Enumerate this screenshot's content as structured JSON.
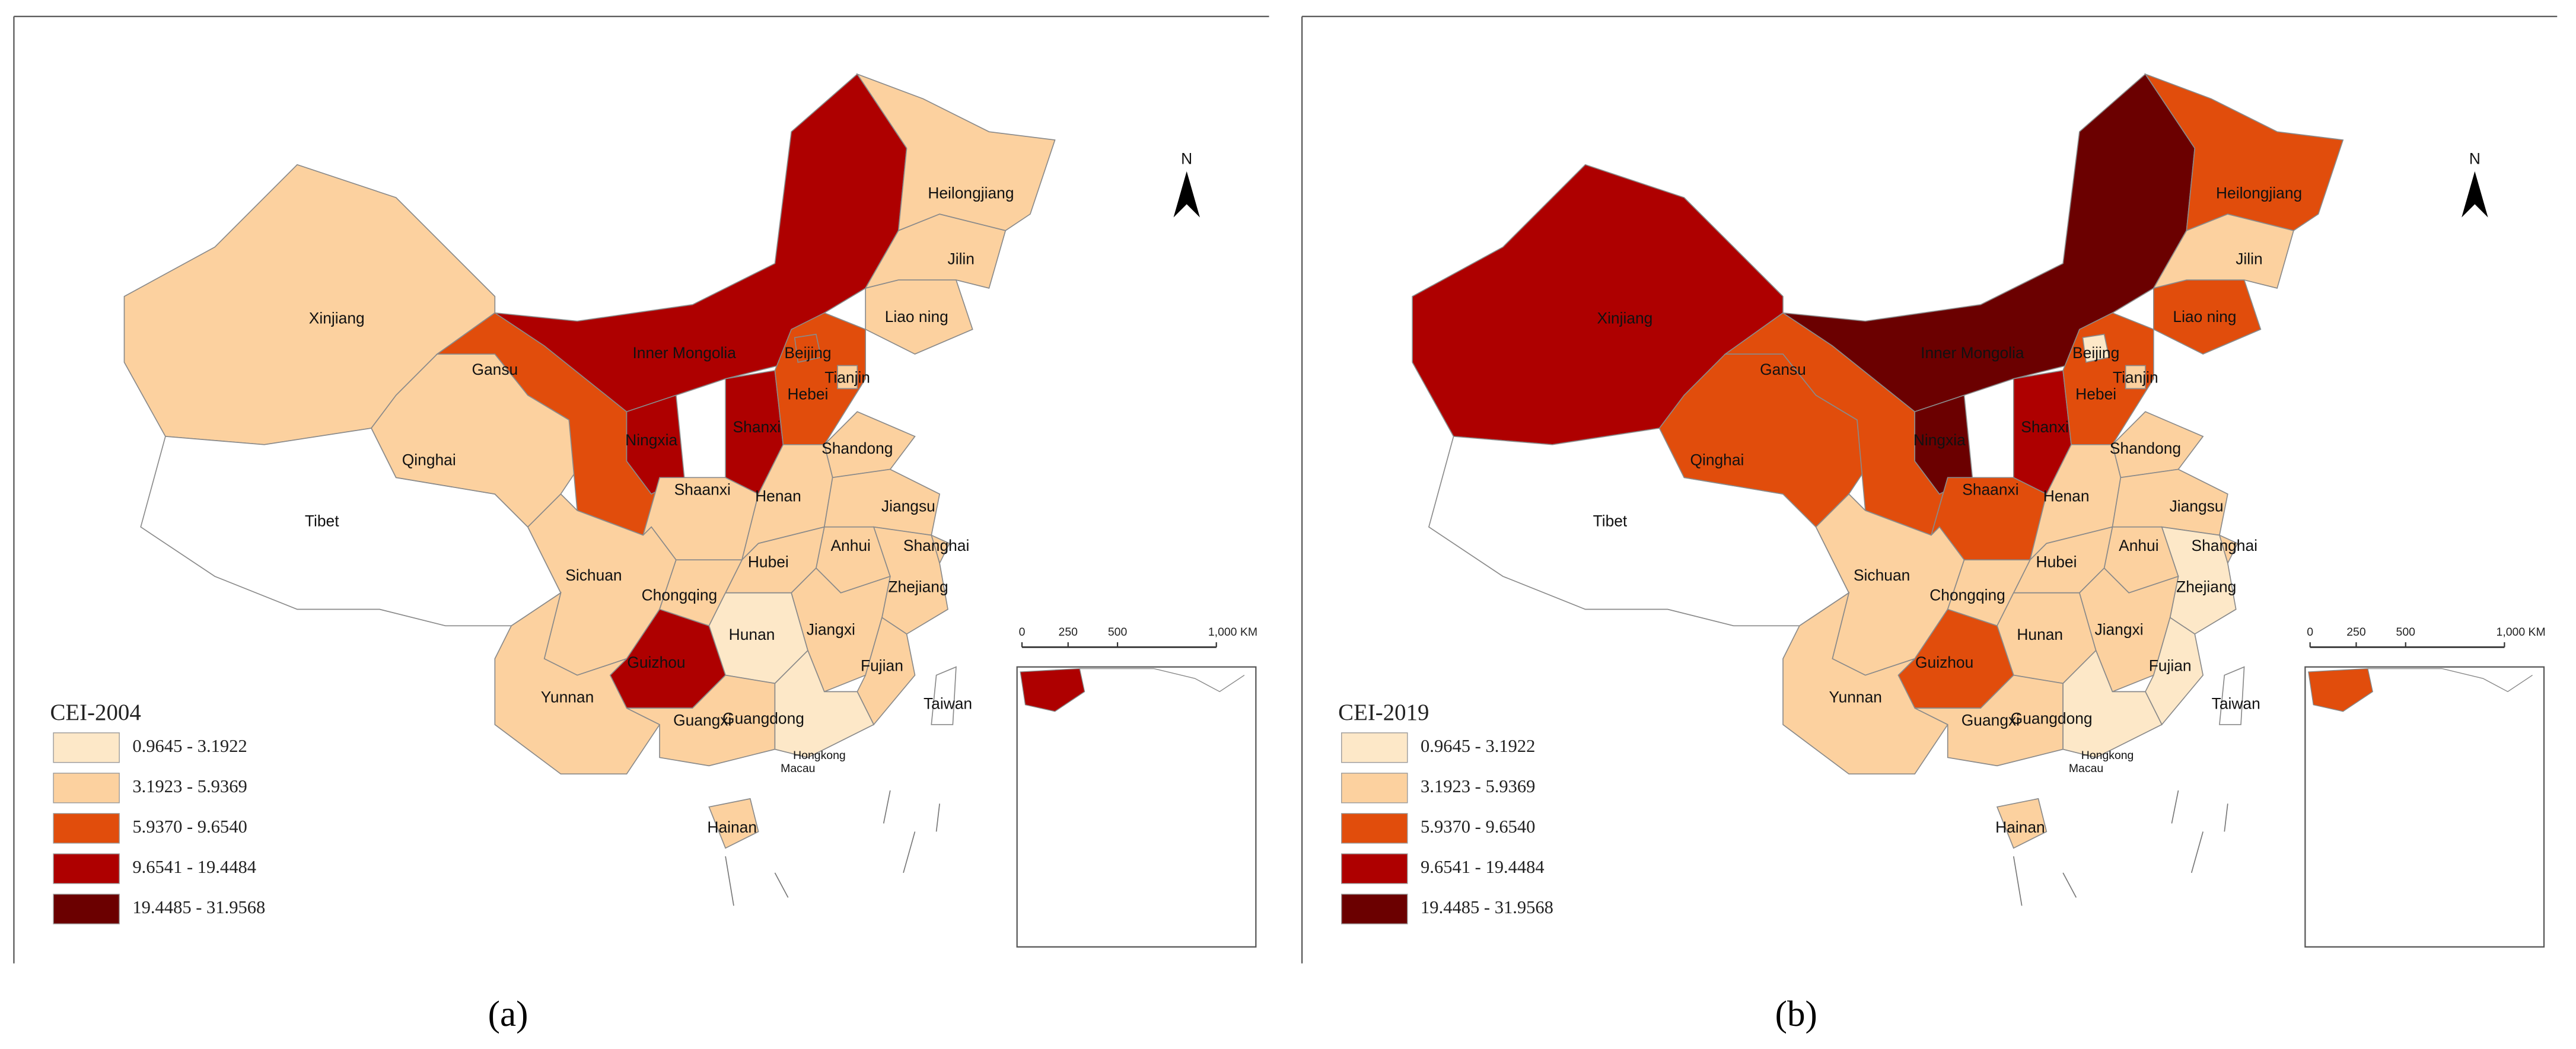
{
  "legend_classes": [
    {
      "label": "0.9645 - 3.1922",
      "color": "#fde8c8"
    },
    {
      "label": "3.1923 - 5.9369",
      "color": "#fcd19f"
    },
    {
      "label": "5.9370 - 9.6540",
      "color": "#e14d0c"
    },
    {
      "label": "9.6541 - 19.4484",
      "color": "#ae0000"
    },
    {
      "label": "19.4485 - 31.9568",
      "color": "#6b0000"
    }
  ],
  "north": "N",
  "scale_labels": [
    "0",
    "250",
    "500",
    "1,000 KM"
  ],
  "extra_labels": [
    "Hongkong",
    "Macau"
  ],
  "panels": [
    {
      "caption": "(a)",
      "legend_title": "CEI-2004",
      "provinces": [
        {
          "name": "Xinjiang",
          "color": "#fcd19f"
        },
        {
          "name": "Tibet",
          "color": "#ffffff"
        },
        {
          "name": "Qinghai",
          "color": "#fcd19f"
        },
        {
          "name": "Gansu",
          "color": "#e14d0c"
        },
        {
          "name": "Inner Mongolia",
          "color": "#ae0000"
        },
        {
          "name": "Ningxia",
          "color": "#ae0000"
        },
        {
          "name": "Shanxi",
          "color": "#ae0000"
        },
        {
          "name": "Shaanxi",
          "color": "#fcd19f"
        },
        {
          "name": "Hebei",
          "color": "#e14d0c"
        },
        {
          "name": "Beijing",
          "color": "#e14d0c"
        },
        {
          "name": "Tianjin",
          "color": "#fcd19f"
        },
        {
          "name": "Liao ning",
          "color": "#fcd19f"
        },
        {
          "name": "Jilin",
          "color": "#fcd19f"
        },
        {
          "name": "Heilongjiang",
          "color": "#fcd19f"
        },
        {
          "name": "Shandong",
          "color": "#fcd19f"
        },
        {
          "name": "Henan",
          "color": "#fcd19f"
        },
        {
          "name": "Jiangsu",
          "color": "#fcd19f"
        },
        {
          "name": "Anhui",
          "color": "#fcd19f"
        },
        {
          "name": "Shanghai",
          "color": "#fcd19f"
        },
        {
          "name": "Hubei",
          "color": "#fcd19f"
        },
        {
          "name": "Zhejiang",
          "color": "#fcd19f"
        },
        {
          "name": "Sichuan",
          "color": "#fcd19f"
        },
        {
          "name": "Chongqing",
          "color": "#fcd19f"
        },
        {
          "name": "Hunan",
          "color": "#fde8c8"
        },
        {
          "name": "Jiangxi",
          "color": "#fcd19f"
        },
        {
          "name": "Fujian",
          "color": "#fcd19f"
        },
        {
          "name": "Guizhou",
          "color": "#ae0000"
        },
        {
          "name": "Yunnan",
          "color": "#fcd19f"
        },
        {
          "name": "Guangxi",
          "color": "#fcd19f"
        },
        {
          "name": "Guangdong",
          "color": "#fde8c8"
        },
        {
          "name": "Hainan",
          "color": "#fcd19f"
        },
        {
          "name": "Taiwan",
          "color": "#ffffff"
        }
      ]
    },
    {
      "caption": "(b)",
      "legend_title": "CEI-2019",
      "provinces": [
        {
          "name": "Xinjiang",
          "color": "#ae0000"
        },
        {
          "name": "Tibet",
          "color": "#ffffff"
        },
        {
          "name": "Qinghai",
          "color": "#e14d0c"
        },
        {
          "name": "Gansu",
          "color": "#e14d0c"
        },
        {
          "name": "Inner Mongolia",
          "color": "#6b0000"
        },
        {
          "name": "Ningxia",
          "color": "#6b0000"
        },
        {
          "name": "Shanxi",
          "color": "#ae0000"
        },
        {
          "name": "Shaanxi",
          "color": "#e14d0c"
        },
        {
          "name": "Hebei",
          "color": "#e14d0c"
        },
        {
          "name": "Beijing",
          "color": "#fde8c8"
        },
        {
          "name": "Tianjin",
          "color": "#fcd19f"
        },
        {
          "name": "Liao ning",
          "color": "#e14d0c"
        },
        {
          "name": "Jilin",
          "color": "#fcd19f"
        },
        {
          "name": "Heilongjiang",
          "color": "#e14d0c"
        },
        {
          "name": "Shandong",
          "color": "#fcd19f"
        },
        {
          "name": "Henan",
          "color": "#fcd19f"
        },
        {
          "name": "Jiangsu",
          "color": "#fcd19f"
        },
        {
          "name": "Anhui",
          "color": "#fcd19f"
        },
        {
          "name": "Shanghai",
          "color": "#fcd19f"
        },
        {
          "name": "Hubei",
          "color": "#fcd19f"
        },
        {
          "name": "Zhejiang",
          "color": "#fde8c8"
        },
        {
          "name": "Sichuan",
          "color": "#fcd19f"
        },
        {
          "name": "Chongqing",
          "color": "#fcd19f"
        },
        {
          "name": "Hunan",
          "color": "#fcd19f"
        },
        {
          "name": "Jiangxi",
          "color": "#fcd19f"
        },
        {
          "name": "Fujian",
          "color": "#fde8c8"
        },
        {
          "name": "Guizhou",
          "color": "#e14d0c"
        },
        {
          "name": "Yunnan",
          "color": "#fcd19f"
        },
        {
          "name": "Guangxi",
          "color": "#fcd19f"
        },
        {
          "name": "Guangdong",
          "color": "#fde8c8"
        },
        {
          "name": "Hainan",
          "color": "#fcd19f"
        },
        {
          "name": "Taiwan",
          "color": "#ffffff"
        }
      ]
    }
  ]
}
